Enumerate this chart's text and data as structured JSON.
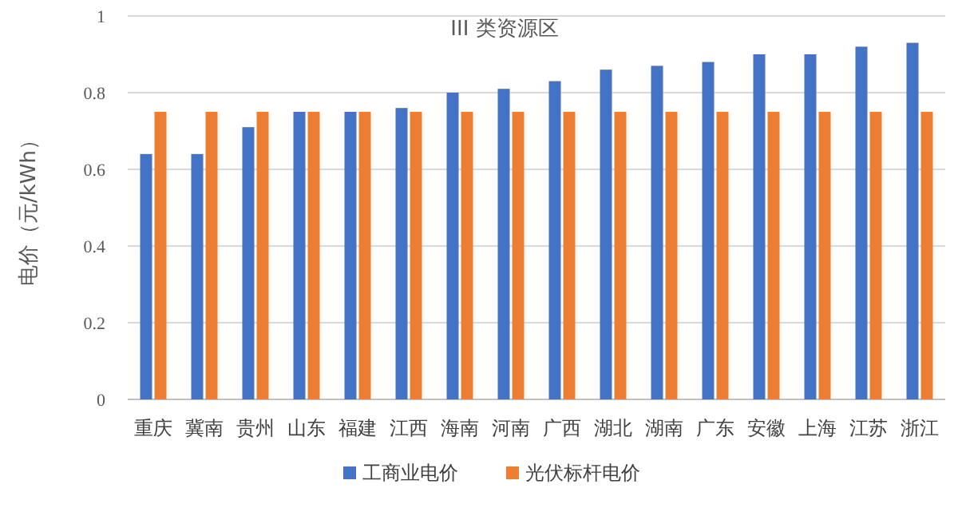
{
  "chart_data": {
    "type": "bar",
    "title": "III  类资源区",
    "ylabel": "电价（元/kWh）",
    "categories": [
      "重庆",
      "冀南",
      "贵州",
      "山东",
      "福建",
      "江西",
      "海南",
      "河南",
      "广西",
      "湖北",
      "湖南",
      "广东",
      "安徽",
      "上海",
      "江苏",
      "浙江"
    ],
    "series": [
      {
        "name": "工商业电价",
        "color": "#4472c4",
        "values": [
          0.64,
          0.64,
          0.71,
          0.75,
          0.75,
          0.76,
          0.8,
          0.81,
          0.83,
          0.86,
          0.87,
          0.88,
          0.9,
          0.9,
          0.92,
          0.93
        ]
      },
      {
        "name": "光伏标杆电价",
        "color": "#ed7d31",
        "values": [
          0.75,
          0.75,
          0.75,
          0.75,
          0.75,
          0.75,
          0.75,
          0.75,
          0.75,
          0.75,
          0.75,
          0.75,
          0.75,
          0.75,
          0.75,
          0.75
        ]
      }
    ],
    "ylim": [
      0,
      1
    ],
    "yticks": [
      0,
      0.2,
      0.4,
      0.6,
      0.8,
      1
    ],
    "grid": "y",
    "legend": "bottom"
  }
}
